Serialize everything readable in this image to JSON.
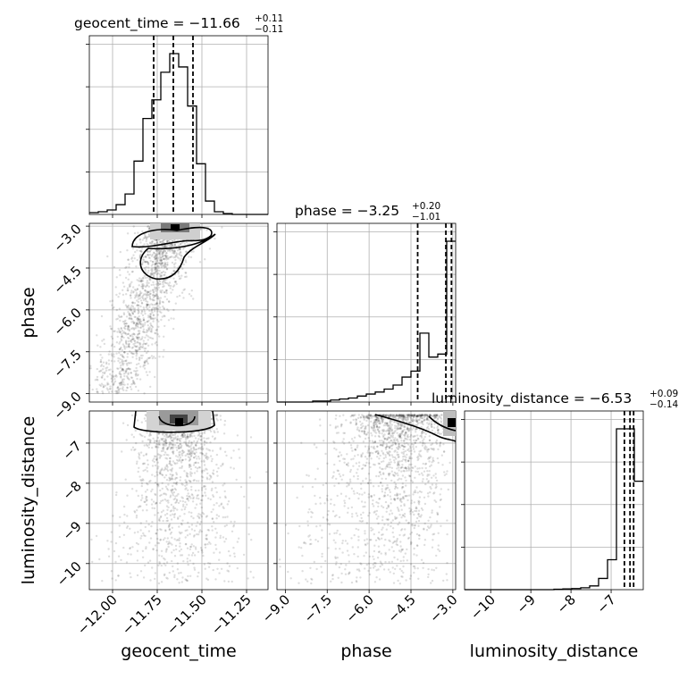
{
  "chart_data": {
    "type": "corner",
    "parameters": [
      "geocent_time",
      "phase",
      "luminosity_distance"
    ],
    "titles": [
      {
        "param": "geocent_time",
        "label": "geocent_time = −11.66",
        "sup": "+0.11",
        "sub": "−0.11"
      },
      {
        "param": "phase",
        "label": "phase = −3.25",
        "sup": "+0.20",
        "sub": "−1.01"
      },
      {
        "param": "luminosity_distance",
        "label": "luminosity_distance = −6.53",
        "sup": "+0.09",
        "sub": "−0.14"
      }
    ],
    "ranges": {
      "geocent_time": [
        -12.13,
        -11.13
      ],
      "phase": [
        -9.3,
        -2.9
      ],
      "luminosity_distance": [
        -10.65,
        -6.2
      ]
    },
    "ticks": {
      "geocent_time": {
        "values": [
          -12.0,
          -11.75,
          -11.5,
          -11.25
        ],
        "labels": [
          "−12.00",
          "−11.75",
          "−11.50",
          "−11.25"
        ]
      },
      "phase": {
        "values": [
          -9.0,
          -7.5,
          -6.0,
          -4.5,
          -3.0
        ],
        "labels": [
          "−9.0",
          "−7.5",
          "−6.0",
          "−4.5",
          "−3.0"
        ]
      },
      "luminosity_distance": {
        "values": [
          -10,
          -9,
          -8,
          -7
        ],
        "labels": [
          "−10",
          "−9",
          "−8",
          "−7"
        ]
      }
    },
    "quantiles": {
      "geocent_time": [
        -11.77,
        -11.66,
        -11.55
      ],
      "phase": [
        -4.26,
        -3.25,
        -3.05
      ],
      "luminosity_distance": [
        -6.67,
        -6.53,
        -6.44
      ]
    },
    "histograms": {
      "geocent_time": {
        "edges": [
          -12.13,
          -12.08,
          -12.03,
          -11.98,
          -11.93,
          -11.88,
          -11.83,
          -11.78,
          -11.73,
          -11.68,
          -11.63,
          -11.58,
          -11.53,
          -11.48,
          -11.43,
          -11.38,
          -11.33,
          -11.28,
          -11.23,
          -11.18,
          -11.13
        ],
        "counts": [
          2,
          3,
          5,
          11,
          23,
          60,
          108,
          129,
          160,
          181,
          166,
          122,
          57,
          15,
          3,
          1,
          0,
          0,
          0,
          0
        ]
      },
      "phase": {
        "edges": [
          -9.3,
          -8.98,
          -8.66,
          -8.34,
          -8.02,
          -7.7,
          -7.38,
          -7.06,
          -6.74,
          -6.42,
          -6.1,
          -5.78,
          -5.46,
          -5.14,
          -4.82,
          -4.5,
          -4.18,
          -3.86,
          -3.54,
          -3.22,
          -2.9
        ],
        "counts": [
          0,
          0,
          0,
          0,
          1,
          1,
          2,
          3,
          4,
          6,
          8,
          10,
          13,
          17,
          25,
          31,
          69,
          45,
          48,
          161
        ]
      },
      "luminosity_distance": {
        "edges": [
          -10.65,
          -10.4275,
          -10.205,
          -9.9825,
          -9.76,
          -9.5375,
          -9.315,
          -9.0925,
          -8.87,
          -8.6475,
          -8.425,
          -8.2025,
          -7.98,
          -7.7575,
          -7.535,
          -7.3125,
          -7.09,
          -6.8675,
          -6.645,
          -6.4225,
          -6.2
        ],
        "counts": [
          0,
          0,
          0,
          0,
          0,
          0,
          0,
          0,
          0,
          0,
          1,
          2,
          3,
          5,
          10,
          30,
          80,
          430,
          430,
          290
        ]
      }
    },
    "contour_peaks": {
      "phase_vs_geocent_time": {
        "x": -11.65,
        "y": -3.05
      },
      "luminosity_distance_vs_geocent_time": {
        "x": -11.63,
        "y": -6.55
      },
      "luminosity_distance_vs_phase": {
        "x": -3.0,
        "y": -6.55
      }
    },
    "grid": true
  }
}
